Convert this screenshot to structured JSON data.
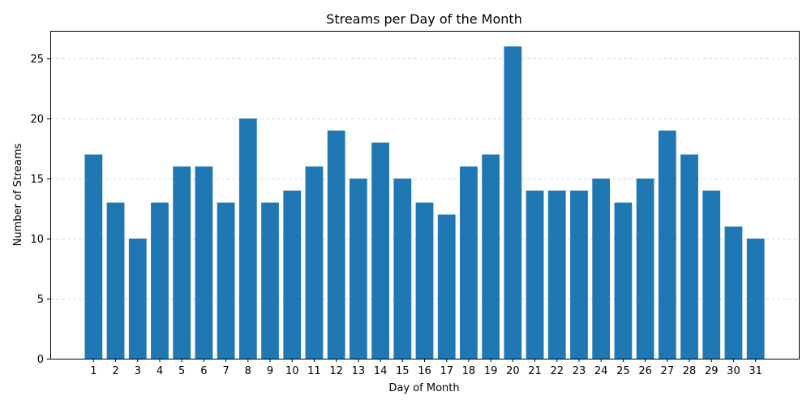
{
  "chart_data": {
    "type": "bar",
    "title": "Streams per Day of the Month",
    "xlabel": "Day of Month",
    "ylabel": "Number of Streams",
    "categories": [
      "1",
      "2",
      "3",
      "4",
      "5",
      "6",
      "7",
      "8",
      "9",
      "10",
      "11",
      "12",
      "13",
      "14",
      "15",
      "16",
      "17",
      "18",
      "19",
      "20",
      "21",
      "22",
      "23",
      "24",
      "25",
      "26",
      "27",
      "28",
      "29",
      "30",
      "31"
    ],
    "values": [
      17,
      13,
      10,
      13,
      16,
      16,
      13,
      20,
      13,
      14,
      16,
      19,
      15,
      18,
      15,
      13,
      12,
      16,
      17,
      26,
      14,
      14,
      14,
      15,
      13,
      15,
      19,
      17,
      14,
      11,
      10
    ],
    "ylim": [
      0,
      27.3
    ],
    "yticks": [
      0,
      5,
      10,
      15,
      20,
      25
    ],
    "grid": "y-dashed",
    "bar_color": "#1f77b4"
  }
}
